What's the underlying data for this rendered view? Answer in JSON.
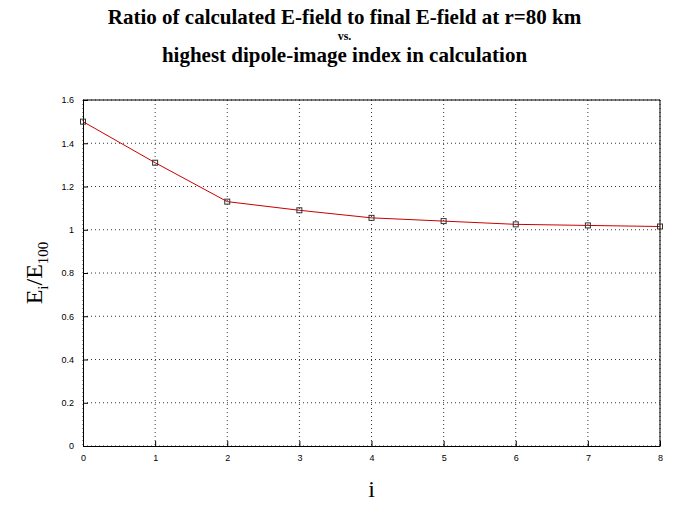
{
  "chart_data": {
    "type": "line",
    "title": [
      "Ratio of calculated E-field to final E-field at r=80 km",
      "vs.",
      "highest dipole-image index in calculation"
    ],
    "xlabel": "i",
    "ylabel": [
      {
        "text": "E"
      },
      {
        "text": "i",
        "subscript": true
      },
      {
        "text": "/E"
      },
      {
        "text": "100",
        "subscript": true
      }
    ],
    "x": [
      0,
      1,
      2,
      3,
      4,
      5,
      6,
      7,
      8
    ],
    "series": [
      {
        "color": "#cc0000",
        "marker": "square",
        "line_style": "solid",
        "values": [
          1.5,
          1.31,
          1.13,
          1.09,
          1.055,
          1.04,
          1.025,
          1.02,
          1.015
        ]
      }
    ],
    "xlim": [
      0,
      8
    ],
    "xticks": [
      0,
      1,
      2,
      3,
      4,
      5,
      6,
      7,
      8
    ],
    "ylim": [
      0,
      1.6
    ],
    "yticks": [
      0,
      0.2,
      0.4,
      0.6,
      0.8,
      1,
      1.2,
      1.4,
      1.6
    ],
    "grid": true
  }
}
